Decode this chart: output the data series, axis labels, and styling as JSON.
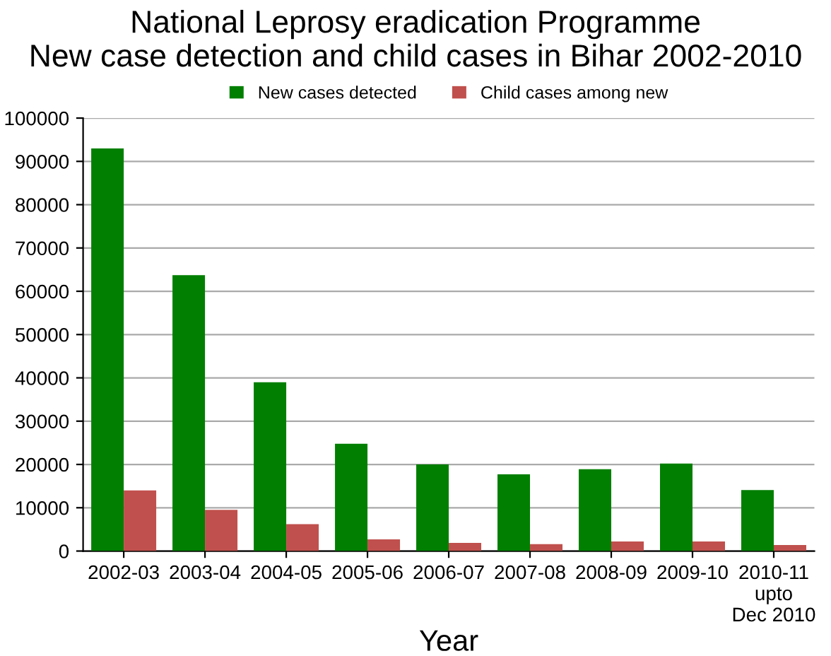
{
  "chart_data": {
    "type": "bar",
    "title": "National Leprosy eradication Programme\nNew case detection and child cases in Bihar 2002-2010",
    "xlabel": "Year",
    "categories": [
      "2002-03",
      "2003-04",
      "2004-05",
      "2005-06",
      "2006-07",
      "2007-08",
      "2008-09",
      "2009-10",
      "2010-11\nupto\nDec 2010"
    ],
    "series": [
      {
        "name": "New cases detected",
        "color": "#007f00",
        "values": [
          93000,
          63700,
          39000,
          24800,
          20000,
          17700,
          18900,
          20200,
          14100
        ]
      },
      {
        "name": "Child cases among new",
        "color": "#c0504d",
        "values": [
          14000,
          9500,
          6200,
          2700,
          1900,
          1600,
          2200,
          2200,
          1400
        ]
      }
    ],
    "ylim": [
      0,
      100000
    ],
    "yticks": [
      0,
      10000,
      20000,
      30000,
      40000,
      50000,
      60000,
      70000,
      80000,
      90000,
      100000
    ],
    "grid": "y",
    "legend": "top"
  }
}
